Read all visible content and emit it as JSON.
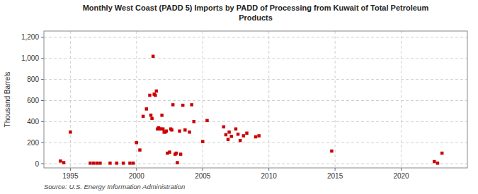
{
  "chart_data": {
    "type": "scatter",
    "title": "Monthly West Coast (PADD 5) Imports by PADD of Processing from Kuwait of Total Petroleum\nProducts",
    "y_label": "Thousand Barrels",
    "annotations": [
      "Source: U.S. Energy Information Administration"
    ],
    "color": "#cc0000",
    "marker": "square",
    "grid": true,
    "xlim": [
      1993.0,
      2025.0
    ],
    "ylim": [
      -40,
      1260
    ],
    "xticks": [
      1995,
      2000,
      2005,
      2010,
      2015,
      2020
    ],
    "yticks": [
      0,
      200,
      400,
      600,
      800,
      {
        "value": 1000,
        "label": "1,000"
      },
      {
        "value": 1200,
        "label": "1,200"
      }
    ],
    "x": [
      1994.25,
      1994.5,
      1995.0,
      1996.5,
      1996.75,
      1997.0,
      1997.25,
      1998.0,
      1998.5,
      1999.0,
      1999.5,
      1999.75,
      2000.0,
      2000.25,
      2000.5,
      2000.75,
      2001.0,
      2001.083,
      2001.167,
      2001.25,
      2001.333,
      2001.417,
      2001.5,
      2001.583,
      2001.667,
      2001.75,
      2001.833,
      2001.917,
      2002.0,
      2002.083,
      2002.167,
      2002.25,
      2002.333,
      2002.5,
      2002.583,
      2002.667,
      2002.75,
      2002.917,
      2003.0,
      2003.083,
      2003.25,
      2003.333,
      2003.5,
      2003.667,
      2004.0,
      2004.167,
      2004.333,
      2005.0,
      2005.333,
      2006.583,
      2006.75,
      2006.917,
      2007.0,
      2007.167,
      2007.5,
      2007.667,
      2007.833,
      2008.083,
      2008.333,
      2009.0,
      2009.25,
      2014.75,
      2022.5,
      2022.75,
      2023.083
    ],
    "values": [
      25,
      10,
      300,
      5,
      5,
      5,
      5,
      5,
      5,
      5,
      5,
      5,
      200,
      130,
      450,
      520,
      650,
      460,
      430,
      1020,
      660,
      650,
      690,
      330,
      340,
      330,
      330,
      460,
      330,
      300,
      300,
      310,
      100,
      110,
      330,
      320,
      560,
      90,
      100,
      10,
      310,
      90,
      555,
      320,
      300,
      560,
      400,
      210,
      410,
      350,
      275,
      230,
      300,
      260,
      330,
      280,
      220,
      265,
      290,
      255,
      265,
      120,
      20,
      5,
      100
    ]
  }
}
